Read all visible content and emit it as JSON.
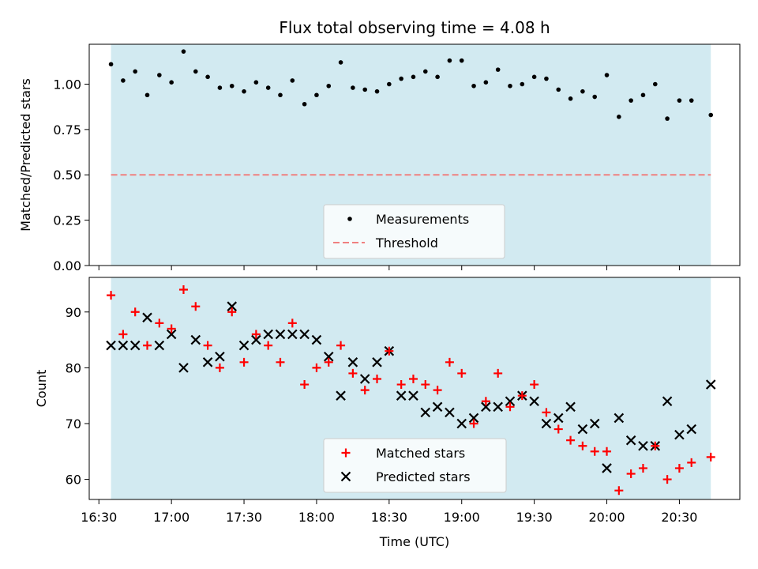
{
  "chart_data": [
    {
      "type": "scatter",
      "title": "Flux total observing time = 4.08 h",
      "xlabel": "",
      "ylabel": "Matched/Predicted stars",
      "ylim": [
        0,
        1.22
      ],
      "yticks": [
        "0.00",
        "0.25",
        "0.50",
        "0.75",
        "1.00"
      ],
      "xlim": [
        "16:26",
        "20:55"
      ],
      "shaded_span": [
        "16:35",
        "20:43"
      ],
      "shade_color": "#add8e6",
      "legend_position": "lower center",
      "series": [
        {
          "name": "Measurements",
          "color": "#000000",
          "marker": "dot",
          "x": [
            "16:35",
            "16:40",
            "16:45",
            "16:50",
            "16:55",
            "17:00",
            "17:05",
            "17:10",
            "17:15",
            "17:20",
            "17:25",
            "17:30",
            "17:35",
            "17:40",
            "17:45",
            "17:50",
            "17:55",
            "18:00",
            "18:05",
            "18:10",
            "18:15",
            "18:20",
            "18:25",
            "18:30",
            "18:35",
            "18:40",
            "18:45",
            "18:50",
            "18:55",
            "19:00",
            "19:05",
            "19:10",
            "19:15",
            "19:20",
            "19:25",
            "19:30",
            "19:35",
            "19:40",
            "19:45",
            "19:50",
            "19:55",
            "20:00",
            "20:05",
            "20:10",
            "20:15",
            "20:20",
            "20:25",
            "20:30",
            "20:35",
            "20:43"
          ],
          "y": [
            1.11,
            1.02,
            1.07,
            0.94,
            1.05,
            1.01,
            1.18,
            1.07,
            1.04,
            0.98,
            0.99,
            0.96,
            1.01,
            0.98,
            0.94,
            1.02,
            0.89,
            0.94,
            0.99,
            1.12,
            0.98,
            0.97,
            0.96,
            1.0,
            1.03,
            1.04,
            1.07,
            1.04,
            1.13,
            1.13,
            0.99,
            1.01,
            1.08,
            0.99,
            1.0,
            1.04,
            1.03,
            0.97,
            0.92,
            0.96,
            0.93,
            1.05,
            0.82,
            0.91,
            0.94,
            1.0,
            0.81,
            0.91,
            0.91,
            0.83
          ]
        },
        {
          "name": "Threshold",
          "color": "#f08080",
          "style": "dashed",
          "value": 0.5
        }
      ]
    },
    {
      "type": "scatter",
      "title": "",
      "xlabel": "Time (UTC)",
      "ylabel": "Count",
      "ylim": [
        56.4,
        96.2
      ],
      "yticks": [
        "60",
        "70",
        "80",
        "90"
      ],
      "xticks": [
        "16:30",
        "17:00",
        "17:30",
        "18:00",
        "18:30",
        "19:00",
        "19:30",
        "20:00",
        "20:30"
      ],
      "xlim": [
        "16:26",
        "20:55"
      ],
      "shaded_span": [
        "16:35",
        "20:43"
      ],
      "shade_color": "#add8e6",
      "legend_position": "lower center",
      "x": [
        "16:35",
        "16:40",
        "16:45",
        "16:50",
        "16:55",
        "17:00",
        "17:05",
        "17:10",
        "17:15",
        "17:20",
        "17:25",
        "17:30",
        "17:35",
        "17:40",
        "17:45",
        "17:50",
        "17:55",
        "18:00",
        "18:05",
        "18:10",
        "18:15",
        "18:20",
        "18:25",
        "18:30",
        "18:35",
        "18:40",
        "18:45",
        "18:50",
        "18:55",
        "19:00",
        "19:05",
        "19:10",
        "19:15",
        "19:20",
        "19:25",
        "19:30",
        "19:35",
        "19:40",
        "19:45",
        "19:50",
        "19:55",
        "20:00",
        "20:05",
        "20:10",
        "20:15",
        "20:20",
        "20:25",
        "20:30",
        "20:35",
        "20:43"
      ],
      "series": [
        {
          "name": "Matched stars",
          "color": "#ff0000",
          "marker": "plus",
          "values": [
            93,
            86,
            90,
            84,
            88,
            87,
            94,
            91,
            84,
            80,
            90,
            81,
            86,
            84,
            81,
            88,
            77,
            80,
            81,
            84,
            79,
            76,
            78,
            83,
            77,
            78,
            77,
            76,
            81,
            79,
            70,
            74,
            79,
            73,
            75,
            77,
            72,
            69,
            67,
            66,
            65,
            65,
            58,
            61,
            62,
            66,
            60,
            62,
            63,
            64
          ]
        },
        {
          "name": "Predicted stars",
          "color": "#000000",
          "marker": "x",
          "values": [
            84,
            84,
            84,
            89,
            84,
            86,
            80,
            85,
            81,
            82,
            91,
            84,
            85,
            86,
            86,
            86,
            86,
            85,
            82,
            75,
            81,
            78,
            81,
            83,
            75,
            75,
            72,
            73,
            72,
            70,
            71,
            73,
            73,
            74,
            75,
            74,
            70,
            71,
            73,
            69,
            70,
            62,
            71,
            67,
            66,
            66,
            74,
            68,
            69,
            77
          ]
        }
      ]
    }
  ]
}
